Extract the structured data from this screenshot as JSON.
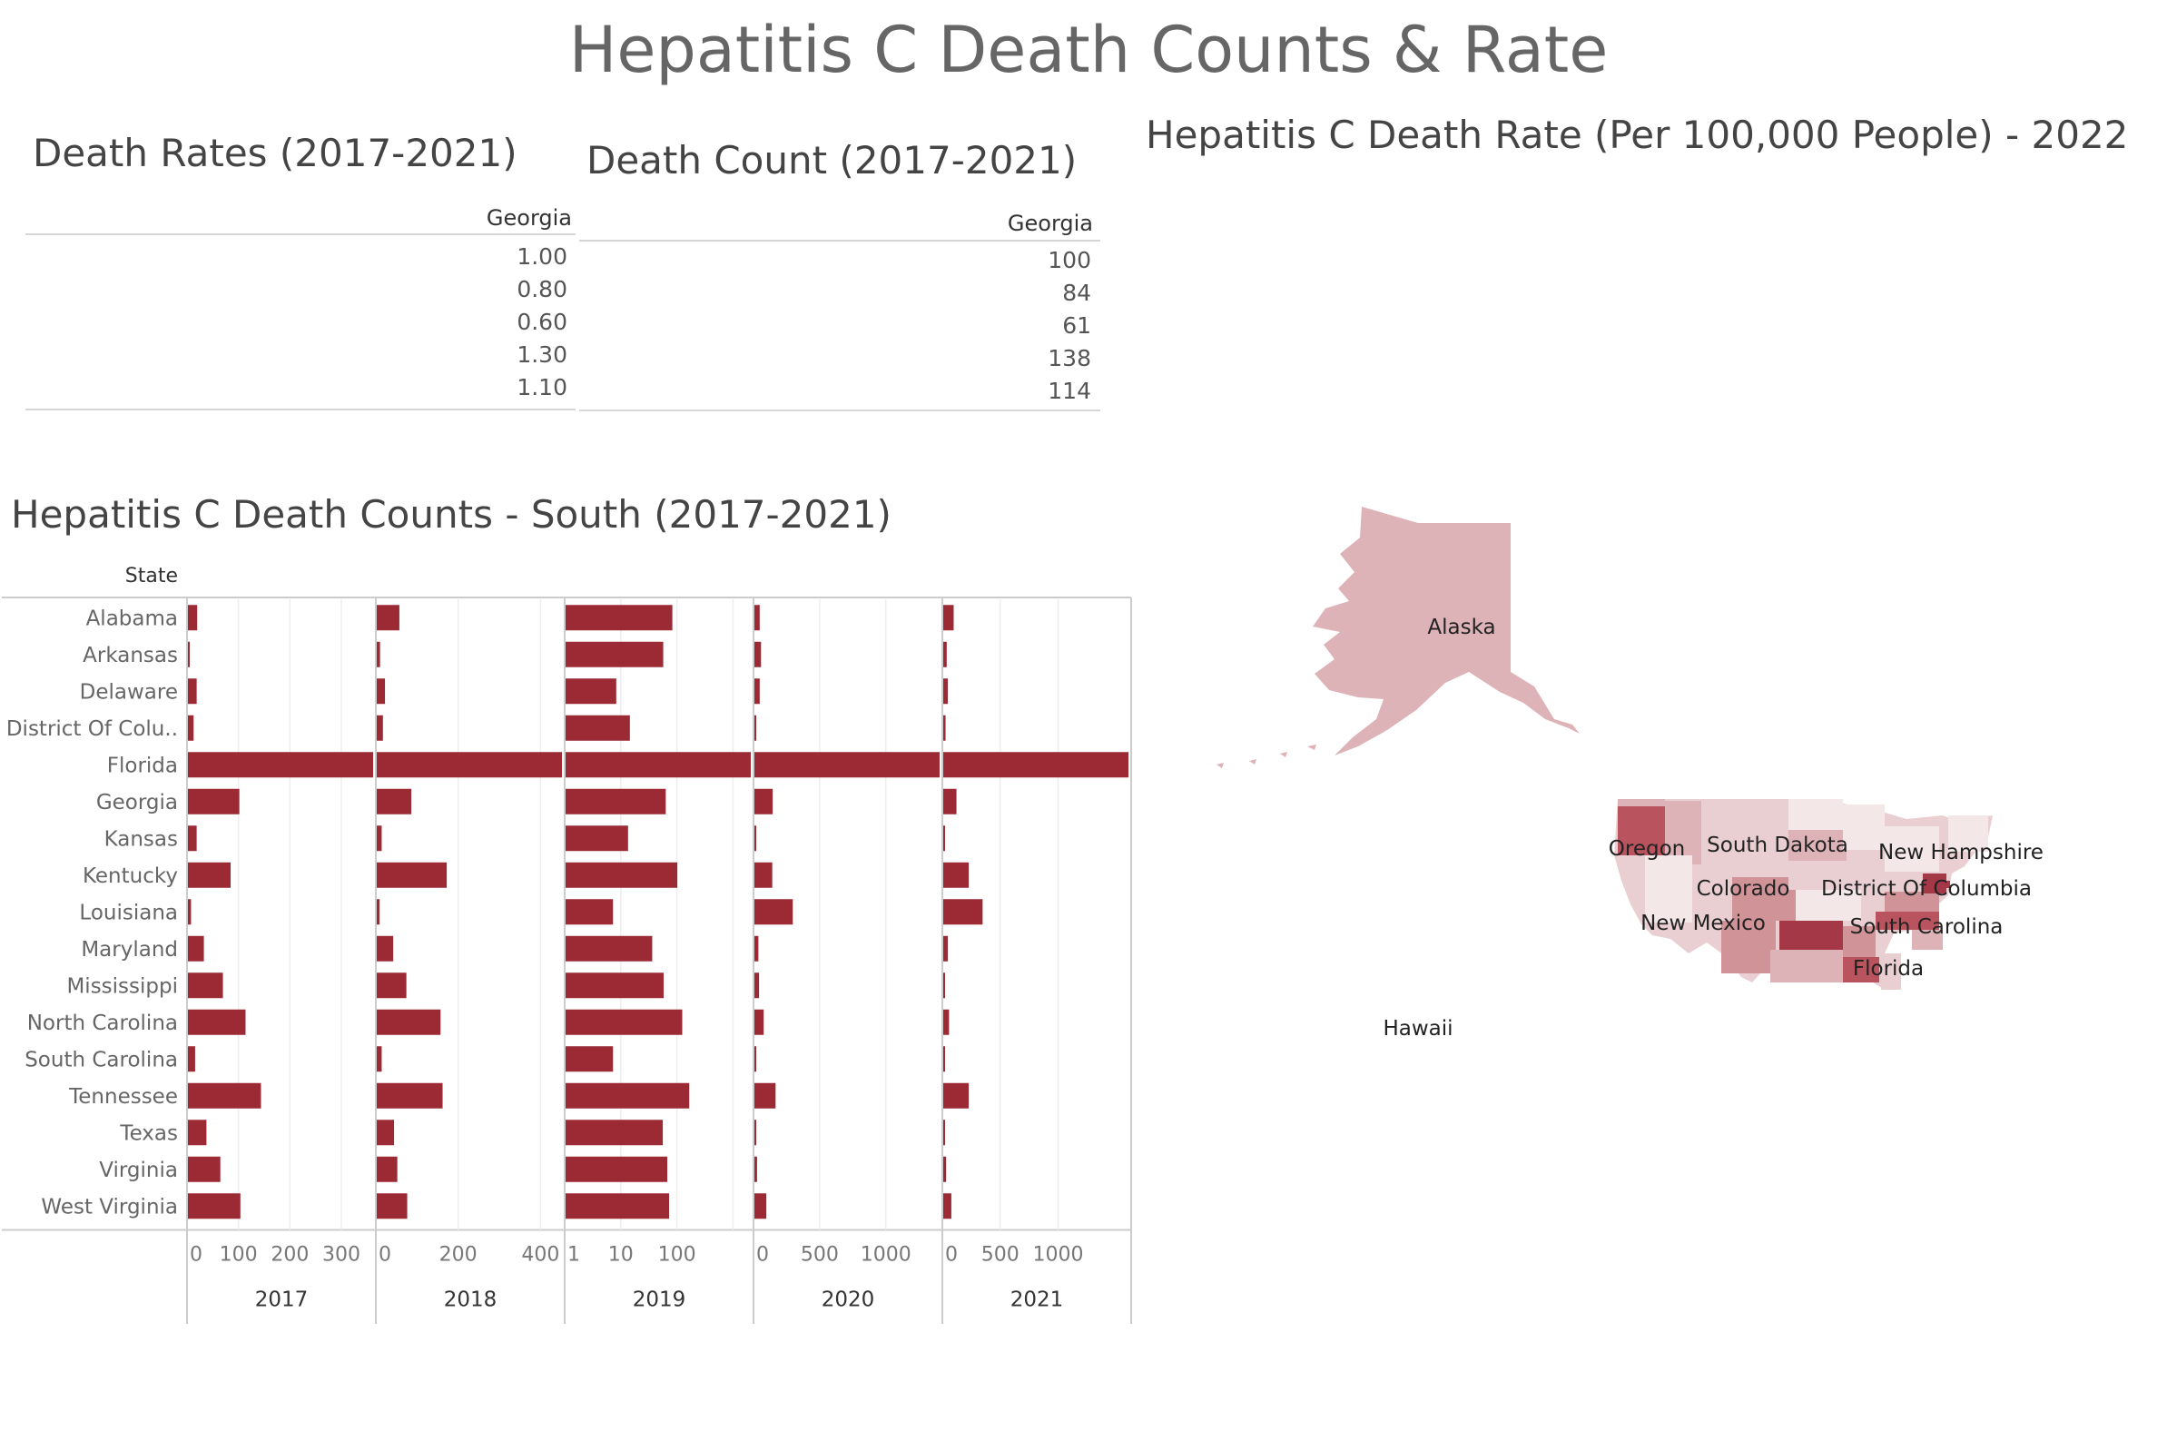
{
  "page": {
    "title": "Hepatitis C Death Counts & Rate",
    "bar_color": "#9c2a35",
    "map_colors": [
      "#f3e7e8",
      "#e9cfd1",
      "#ddb3b7",
      "#cf9398",
      "#b9545e",
      "#a43846"
    ]
  },
  "rates_table": {
    "title": "Death Rates (2017-2021)",
    "column": "Georgia",
    "values": [
      "1.00",
      "0.80",
      "0.60",
      "1.30",
      "1.10"
    ]
  },
  "count_table": {
    "title": "Death Count (2017-2021)",
    "column": "Georgia",
    "values": [
      "100",
      "84",
      "61",
      "138",
      "114"
    ]
  },
  "chart_data": [
    {
      "type": "bar",
      "title": "Hepatitis C Death Counts - South (2017-2021)",
      "row_header": "State",
      "categories": [
        "Alabama",
        "Arkansas",
        "Delaware",
        "District Of Colu..",
        "Florida",
        "Georgia",
        "Kansas",
        "Kentucky",
        "Louisiana",
        "Maryland",
        "Mississippi",
        "North Carolina",
        "South Carolina",
        "Tennessee",
        "Texas",
        "Virginia",
        "West Virginia"
      ],
      "series": [
        {
          "name": "2017",
          "values": [
            18,
            3,
            17,
            11,
            360,
            100,
            17,
            83,
            6,
            31,
            68,
            112,
            14,
            142,
            36,
            63,
            102
          ],
          "scale": "linear",
          "xlim": [
            0,
            360
          ],
          "ticks": [
            0,
            100,
            200,
            300
          ]
        },
        {
          "name": "2018",
          "values": [
            55,
            8,
            20,
            15,
            450,
            84,
            12,
            170,
            7,
            40,
            72,
            155,
            12,
            160,
            42,
            50,
            74
          ],
          "scale": "linear",
          "xlim": [
            0,
            450
          ],
          "ticks": [
            0,
            200,
            400
          ]
        },
        {
          "name": "2019",
          "values": [
            80,
            55,
            8,
            14,
            2000,
            61,
            13,
            98,
            7,
            35,
            56,
            120,
            7,
            160,
            54,
            65,
            70
          ],
          "scale": "log",
          "xlim": [
            1,
            2000
          ],
          "ticks": [
            1,
            10,
            100
          ]
        },
        {
          "name": "2020",
          "values": [
            40,
            50,
            40,
            8,
            1400,
            138,
            10,
            135,
            290,
            30,
            35,
            70,
            10,
            160,
            12,
            20,
            90
          ],
          "scale": "linear",
          "xlim": [
            0,
            1400
          ],
          "ticks": [
            0,
            500,
            1000
          ]
        },
        {
          "name": "2021",
          "values": [
            90,
            30,
            40,
            20,
            1600,
            114,
            10,
            220,
            340,
            40,
            15,
            50,
            15,
            220,
            10,
            25,
            70
          ],
          "scale": "linear",
          "xlim": [
            0,
            1600
          ],
          "ticks": [
            0,
            500,
            1000
          ]
        }
      ]
    },
    {
      "type": "map",
      "title": "Hepatitis C Death Rate (Per 100,000 People) - 2022",
      "labels": [
        "Alaska",
        "Hawaii",
        "Oregon",
        "South Dakota",
        "New Hampshire",
        "Colorado",
        "District Of Columbia",
        "New Mexico",
        "South Carolina",
        "Florida"
      ]
    }
  ]
}
